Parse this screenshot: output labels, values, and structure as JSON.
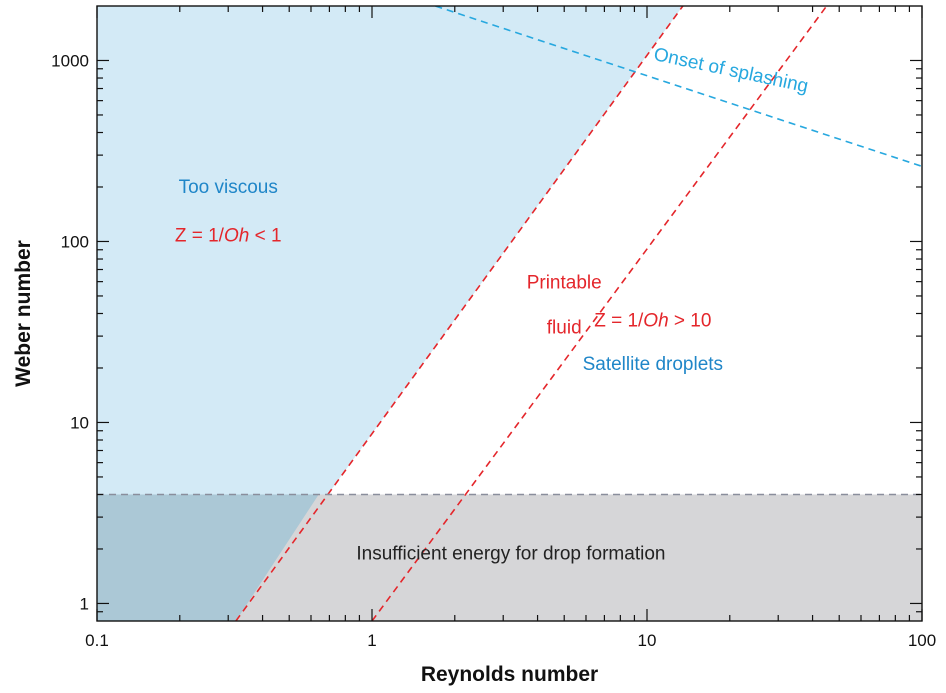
{
  "colors": {
    "viscous_region": "#d3eaf6",
    "energy_region": "#d6d6d8",
    "overlap_region": "#abc8d6",
    "red_line": "#e4262b",
    "blue_line": "#27a8df",
    "gray_line": "#8a8e9c",
    "blue_text": "#1f86c8",
    "red_text": "#e4262b"
  },
  "chart_data": {
    "type": "line",
    "xlabel": "Reynolds number",
    "ylabel": "Weber number",
    "xscale": "log",
    "yscale": "log",
    "xlim": [
      0.1,
      100
    ],
    "ylim": [
      0.8,
      2000
    ],
    "xticks": [
      {
        "value": 0.1,
        "label": "0.1"
      },
      {
        "value": 1,
        "label": "1"
      },
      {
        "value": 10,
        "label": "10"
      },
      {
        "value": 100,
        "label": "100"
      }
    ],
    "yticks": [
      {
        "value": 1,
        "label": "1"
      },
      {
        "value": 10,
        "label": "10"
      },
      {
        "value": 100,
        "label": "100"
      },
      {
        "value": 1000,
        "label": "1000"
      }
    ],
    "lines": [
      {
        "key": "z1",
        "color": "#e4262b",
        "dash": true,
        "points": [
          [
            0.32,
            0.8
          ],
          [
            13.5,
            2000
          ]
        ]
      },
      {
        "key": "z10",
        "color": "#e4262b",
        "dash": true,
        "points": [
          [
            1.0,
            0.8
          ],
          [
            45,
            2000
          ]
        ]
      },
      {
        "key": "splash",
        "color": "#27a8df",
        "dash": true,
        "points": [
          [
            1.7,
            2000
          ],
          [
            100,
            260
          ]
        ]
      },
      {
        "key": "energy",
        "color": "#8a8e9c",
        "dash": true,
        "points": [
          [
            0.1,
            4
          ],
          [
            100,
            4
          ]
        ]
      }
    ],
    "regions": [
      {
        "key": "viscous",
        "fill": "#d3eaf6",
        "polygon": [
          [
            0.1,
            0.8
          ],
          [
            0.32,
            0.8
          ],
          [
            13.5,
            2000
          ],
          [
            0.1,
            2000
          ]
        ]
      },
      {
        "key": "energy",
        "fill": "#d6d6d8",
        "polygon": [
          [
            0.1,
            0.8
          ],
          [
            100,
            0.8
          ],
          [
            100,
            4
          ],
          [
            0.1,
            4
          ]
        ]
      },
      {
        "key": "overlap",
        "fill": "#abc8d6",
        "polygon": [
          [
            0.1,
            0.8
          ],
          [
            0.32,
            0.8
          ],
          [
            0.64,
            4
          ],
          [
            0.1,
            4
          ]
        ]
      }
    ],
    "annotations": [
      {
        "key": "too-viscous",
        "text": "Too viscous",
        "x": 0.3,
        "y": 185,
        "color": "#1f86c8",
        "rotate": 0
      },
      {
        "key": "z-lt-1",
        "lines": [
          "Z = 1/",
          "Oh",
          " < 1"
        ],
        "x": 0.3,
        "y": 100,
        "color": "#e4262b",
        "rotate": 0
      },
      {
        "key": "printable",
        "text": "Printable",
        "x": 5.0,
        "y": 55,
        "color": "#e4262b",
        "rotate": 0
      },
      {
        "key": "fluid",
        "text": "fluid",
        "x": 5.0,
        "y": 31,
        "color": "#e4262b",
        "rotate": 0
      },
      {
        "key": "z-gt-10",
        "lines": [
          "Z = 1/",
          "Oh",
          " > 10"
        ],
        "x": 10.5,
        "y": 34,
        "color": "#e4262b",
        "rotate": 0
      },
      {
        "key": "satellite",
        "text": "Satellite droplets",
        "x": 10.5,
        "y": 19.5,
        "color": "#1f86c8",
        "rotate": 0
      },
      {
        "key": "splashing",
        "text": "Onset of splashing",
        "x": 20,
        "y": 820,
        "color": "#27a8df",
        "rotate": 12
      },
      {
        "key": "insufficient",
        "text": "Insufficient energy for drop formation",
        "x": 3.2,
        "y": 1.75,
        "color": "#222222",
        "rotate": 0
      }
    ]
  }
}
